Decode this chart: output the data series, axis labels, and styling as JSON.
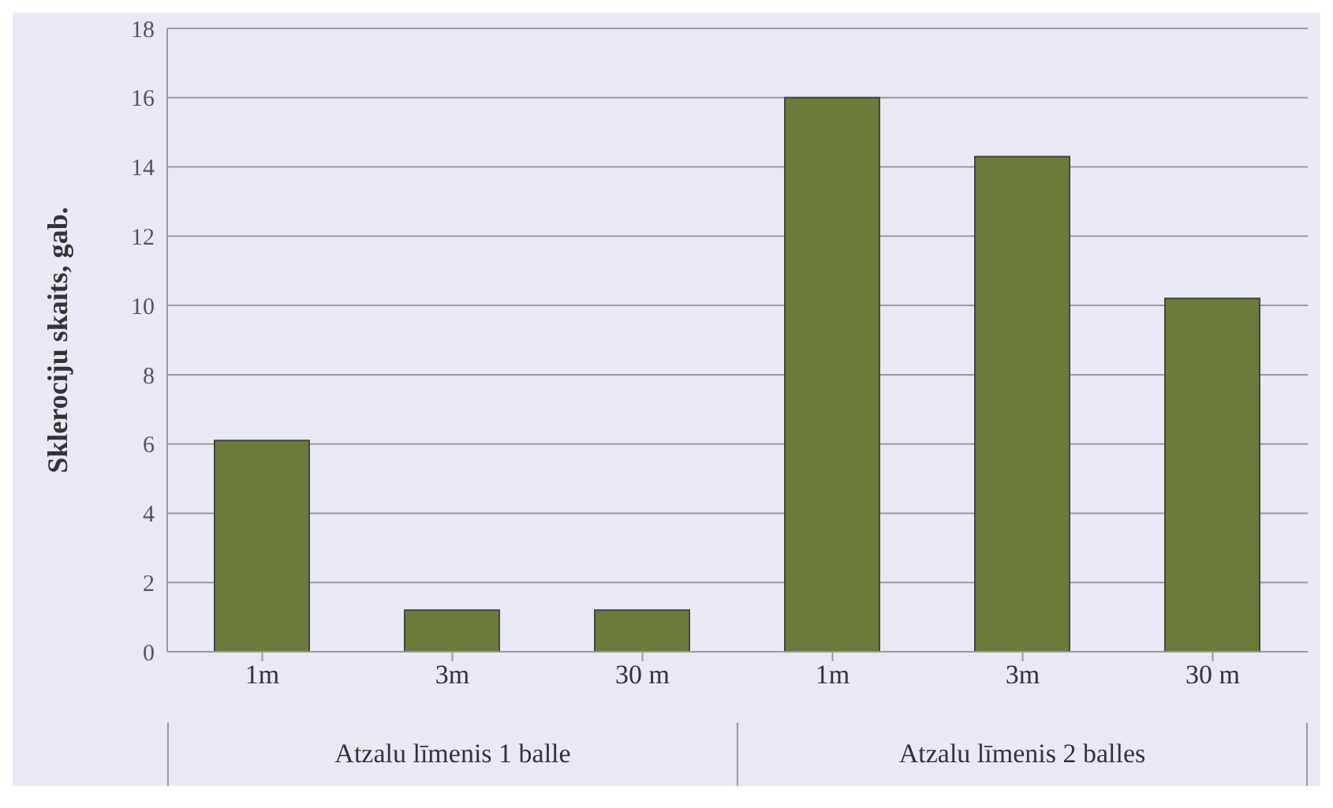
{
  "chart_data": {
    "type": "bar",
    "ylabel": "Sklerociju skaits, gab.",
    "categories": [
      "1m",
      "3m",
      "30 m",
      "1m",
      "3m",
      "30 m"
    ],
    "values": [
      6.1,
      1.2,
      1.2,
      16.0,
      14.3,
      10.2
    ],
    "color": "#6b7b3a",
    "ylim": [
      0,
      18
    ],
    "yticks": [
      0,
      2,
      4,
      6,
      8,
      10,
      12,
      14,
      16,
      18
    ],
    "grid": "y",
    "annotations": [
      "Atzalu līmenis 1 balle",
      "Atzalu līmenis 2 balles"
    ]
  }
}
